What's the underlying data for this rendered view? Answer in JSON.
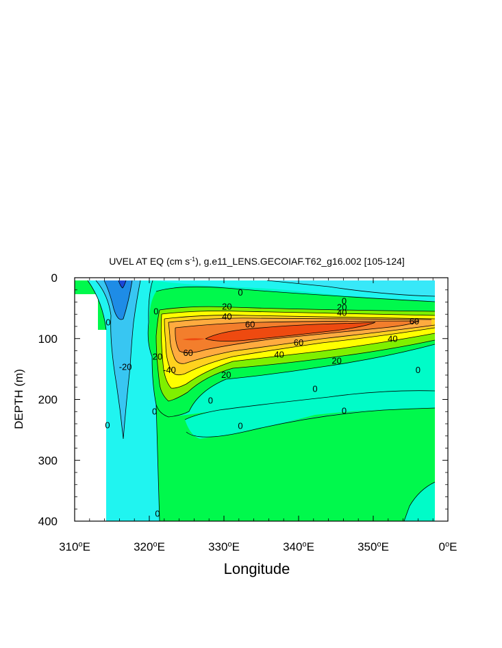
{
  "chart_data": {
    "type": "heatmap",
    "title": "UVEL AT EQ (cm s",
    "title_sup": "-1",
    "title_rest": "), g.e11_LENS.GECOIAF.T62_g16.002 [105-124]",
    "xlabel": "Longitude",
    "ylabel": "DEPTH (m)",
    "xlim": [
      310,
      360
    ],
    "ylim": [
      400,
      0
    ],
    "x_ticks": [
      {
        "value": 310,
        "num": "310",
        "deg": "o",
        "hemi": "E"
      },
      {
        "value": 320,
        "num": "320",
        "deg": "o",
        "hemi": "E"
      },
      {
        "value": 330,
        "num": "330",
        "deg": "o",
        "hemi": "E"
      },
      {
        "value": 340,
        "num": "340",
        "deg": "o",
        "hemi": "E"
      },
      {
        "value": 350,
        "num": "350",
        "deg": "o",
        "hemi": "E"
      },
      {
        "value": 360,
        "num": "0",
        "deg": "o",
        "hemi": "E"
      }
    ],
    "y_ticks": [
      "0",
      "100",
      "200",
      "300",
      "400"
    ],
    "y_tick_values": [
      0,
      100,
      200,
      300,
      400
    ],
    "contour_labels": [
      {
        "text": "0",
        "x": 332.2,
        "y": 25
      },
      {
        "text": "0",
        "x": 346.1,
        "y": 39
      },
      {
        "text": "20",
        "x": 330.4,
        "y": 48
      },
      {
        "text": "20",
        "x": 345.8,
        "y": 49
      },
      {
        "text": "40",
        "x": 345.8,
        "y": 58
      },
      {
        "text": "40",
        "x": 330.4,
        "y": 64
      },
      {
        "text": "60",
        "x": 333.5,
        "y": 77
      },
      {
        "text": "60",
        "x": 355.5,
        "y": 72
      },
      {
        "text": "0",
        "x": 314.5,
        "y": 74
      },
      {
        "text": "0",
        "x": 320.9,
        "y": 56
      },
      {
        "text": "60",
        "x": 340.0,
        "y": 107
      },
      {
        "text": "40",
        "x": 352.6,
        "y": 101
      },
      {
        "text": "60",
        "x": 325.2,
        "y": 124
      },
      {
        "text": "40",
        "x": 337.4,
        "y": 127
      },
      {
        "text": "20",
        "x": 321.1,
        "y": 130
      },
      {
        "text": "20",
        "x": 345.1,
        "y": 137
      },
      {
        "text": "-20",
        "x": 316.8,
        "y": 147
      },
      {
        "text": "-40",
        "x": 322.7,
        "y": 152
      },
      {
        "text": "20",
        "x": 330.3,
        "y": 160
      },
      {
        "text": "0",
        "x": 356.0,
        "y": 152
      },
      {
        "text": "0",
        "x": 342.2,
        "y": 183
      },
      {
        "text": "0",
        "x": 328.2,
        "y": 202
      },
      {
        "text": "0",
        "x": 346.1,
        "y": 219
      },
      {
        "text": "0",
        "x": 320.7,
        "y": 220
      },
      {
        "text": "0",
        "x": 314.4,
        "y": 243
      },
      {
        "text": "0",
        "x": 332.2,
        "y": 244
      },
      {
        "text": "0",
        "x": 321.1,
        "y": 388
      }
    ],
    "color_levels": [
      {
        "range": "-40 to -20",
        "color": "#1e8ce6"
      },
      {
        "range": "-20 to -10",
        "color": "#38c6f2"
      },
      {
        "range": "-10 to 0",
        "color": "#20f4f0"
      },
      {
        "range": "0 to 10",
        "color": "#00fcc8"
      },
      {
        "range": "10 to 20",
        "color": "#00f94c"
      },
      {
        "range": "20 to 30",
        "color": "#7ff000"
      },
      {
        "range": "30 to 40",
        "color": "#ffff00"
      },
      {
        "range": "40 to 50",
        "color": "#ffd21e"
      },
      {
        "range": "50 to 60",
        "color": "#ffab3f"
      },
      {
        "range": "60 to 70",
        "color": "#f37e2c"
      },
      {
        "range": "70 to 80",
        "color": "#ee4a10"
      }
    ],
    "grid": false,
    "legend": "none"
  }
}
